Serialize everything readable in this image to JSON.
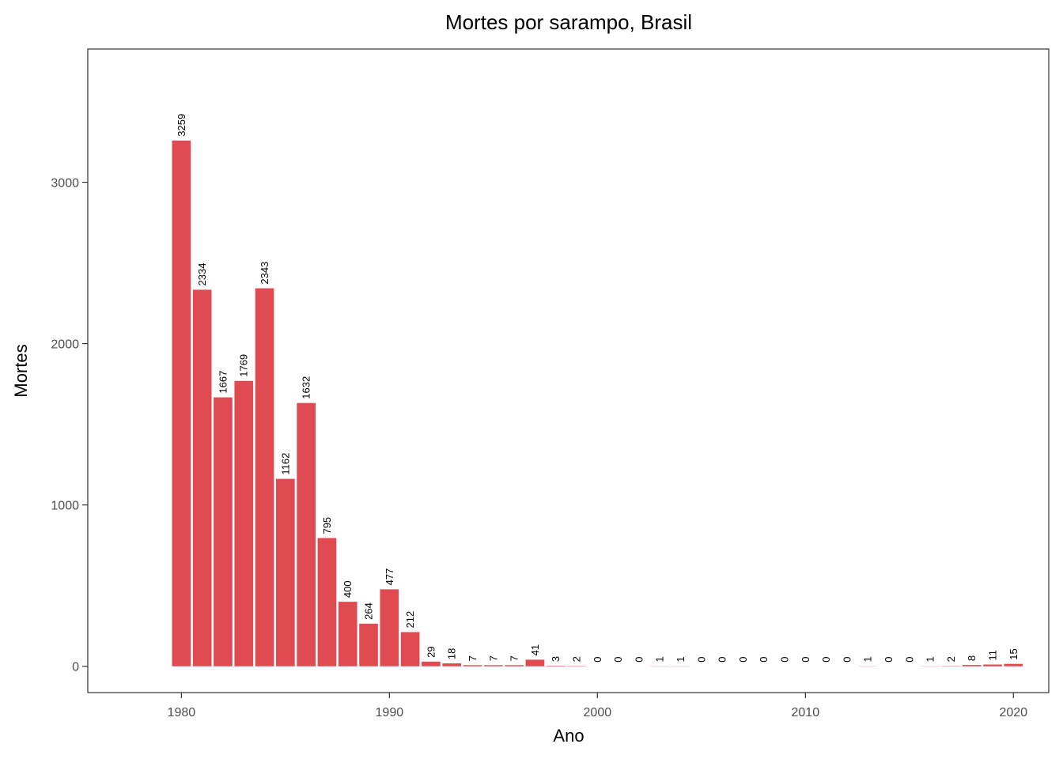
{
  "chart_data": {
    "type": "bar",
    "title": "Mortes por sarampo, Brasil",
    "xlabel": "Ano",
    "ylabel": "Mortes",
    "x": [
      1980,
      1981,
      1982,
      1983,
      1984,
      1985,
      1986,
      1987,
      1988,
      1989,
      1990,
      1991,
      1992,
      1993,
      1994,
      1995,
      1996,
      1997,
      1998,
      1999,
      2000,
      2001,
      2002,
      2003,
      2004,
      2005,
      2006,
      2007,
      2008,
      2009,
      2010,
      2011,
      2012,
      2013,
      2014,
      2015,
      2016,
      2017,
      2018,
      2019,
      2020
    ],
    "values": [
      3259,
      2334,
      1667,
      1769,
      2343,
      1162,
      1632,
      795,
      400,
      264,
      477,
      212,
      29,
      18,
      7,
      7,
      7,
      41,
      3,
      2,
      0,
      0,
      0,
      1,
      1,
      0,
      0,
      0,
      0,
      0,
      0,
      0,
      0,
      1,
      0,
      0,
      1,
      2,
      8,
      11,
      15
    ],
    "data_labels": [
      "3259",
      "2334",
      "1667",
      "1769",
      "2343",
      "1162",
      "1632",
      "795",
      "400",
      "264",
      "477",
      "212",
      "29",
      "18",
      "7",
      "7",
      "7",
      "41",
      "3",
      "2",
      "0",
      "0",
      "0",
      "1",
      "1",
      "0",
      "0",
      "0",
      "0",
      "0",
      "0",
      "0",
      "0",
      "1",
      "0",
      "0",
      "1",
      "2",
      "8",
      "11",
      "15"
    ],
    "x_ticks": [
      1980,
      1990,
      2000,
      2010,
      2020
    ],
    "x_tick_labels": [
      "1980",
      "1990",
      "2000",
      "2010",
      "2020"
    ],
    "y_ticks": [
      0,
      1000,
      2000,
      3000
    ],
    "y_tick_labels": [
      "0",
      "1000",
      "2000",
      "3000"
    ],
    "xlim": [
      1975.5,
      2021.7
    ],
    "ylim": [
      -163,
      3826
    ],
    "grid": false,
    "bar_color": "#e04b52",
    "panel_border_color": "#333333"
  }
}
